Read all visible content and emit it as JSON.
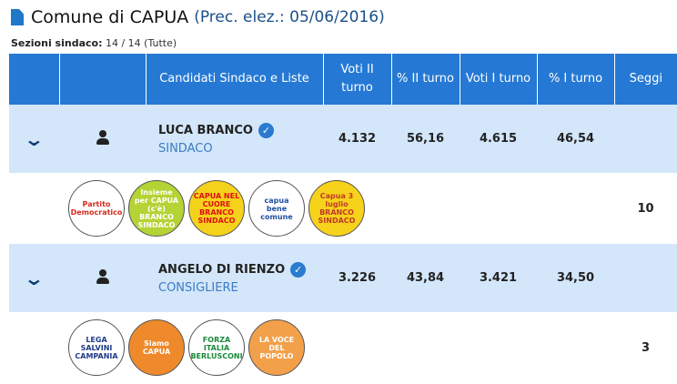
{
  "header": {
    "title": "Comune di CAPUA",
    "prev": "(Prec. elez.: 05/06/2016)",
    "sezioni_label": "Sezioni sindaco:",
    "sezioni_value": "14 / 14",
    "sezioni_note": "(Tutte)"
  },
  "columns": [
    "Candidati Sindaco e Liste",
    "Voti II turno",
    "% II turno",
    "Voti I turno",
    "% I turno",
    "Seggi"
  ],
  "candidates": [
    {
      "name": "LUCA BRANCO",
      "role": "SINDACO",
      "voti2": "4.132",
      "pct2": "56,16",
      "voti1": "4.615",
      "pct1": "46,54",
      "seggi": "10",
      "logos": [
        {
          "text": "Partito Democratico",
          "bg": "#ffffff",
          "fg": "#d62a1e"
        },
        {
          "text": "Insieme per CAPUA (c'è) BRANCO SINDACO",
          "bg": "#b4d335",
          "fg": "#ffffff"
        },
        {
          "text": "CAPUA NEL CUORE BRANCO SINDACO",
          "bg": "#f4d21c",
          "fg": "#d11"
        },
        {
          "text": "capua bene comune",
          "bg": "#ffffff",
          "fg": "#1e4fa0"
        },
        {
          "text": "Capua 3 luglio BRANCO SINDACO",
          "bg": "#f7d21a",
          "fg": "#c0392b"
        }
      ]
    },
    {
      "name": "ANGELO DI RIENZO",
      "role": "CONSIGLIERE",
      "voti2": "3.226",
      "pct2": "43,84",
      "voti1": "3.421",
      "pct1": "34,50",
      "seggi": "3",
      "logos": [
        {
          "text": "LEGA SALVINI CAMPANIA",
          "bg": "#ffffff",
          "fg": "#1e3a8a"
        },
        {
          "text": "Siamo CAPUA",
          "bg": "#ee8a2c",
          "fg": "#ffffff"
        },
        {
          "text": "FORZA ITALIA BERLUSCONI",
          "bg": "#ffffff",
          "fg": "#1a8a3a"
        },
        {
          "text": "LA VOCE DEL POPOLO",
          "bg": "#f2a04a",
          "fg": "#ffffff"
        }
      ]
    }
  ],
  "colors": {
    "header": "#2579d4",
    "row": "#d3e6fa",
    "accent": "#3a7cc4"
  }
}
